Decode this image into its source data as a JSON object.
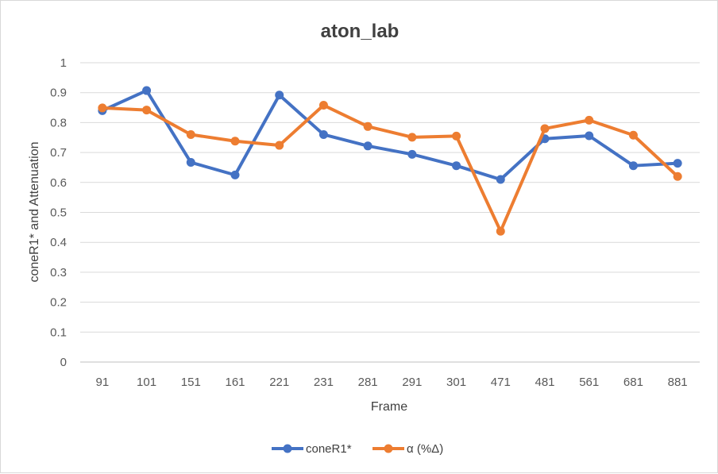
{
  "chart_data": {
    "type": "line",
    "title": "aton_lab",
    "xlabel": "Frame",
    "ylabel": "coneR1* and Attenuation",
    "categories": [
      "91",
      "101",
      "151",
      "161",
      "221",
      "231",
      "281",
      "291",
      "301",
      "471",
      "481",
      "561",
      "681",
      "881"
    ],
    "ylim": [
      0,
      1
    ],
    "yticks": [
      "0",
      "0.1",
      "0.2",
      "0.3",
      "0.4",
      "0.5",
      "0.6",
      "0.7",
      "0.8",
      "0.9",
      "1"
    ],
    "grid": true,
    "legend_position": "bottom",
    "series": [
      {
        "name": "coneR1*",
        "color": "#4472c4",
        "values": [
          0.84,
          0.907,
          0.667,
          0.625,
          0.892,
          0.76,
          0.722,
          0.694,
          0.656,
          0.61,
          0.746,
          0.756,
          0.656,
          0.664
        ]
      },
      {
        "name": "α (%Δ)",
        "color": "#ed7d31",
        "values": [
          0.849,
          0.842,
          0.76,
          0.738,
          0.724,
          0.858,
          0.787,
          0.751,
          0.755,
          0.437,
          0.78,
          0.808,
          0.758,
          0.62
        ]
      }
    ]
  }
}
